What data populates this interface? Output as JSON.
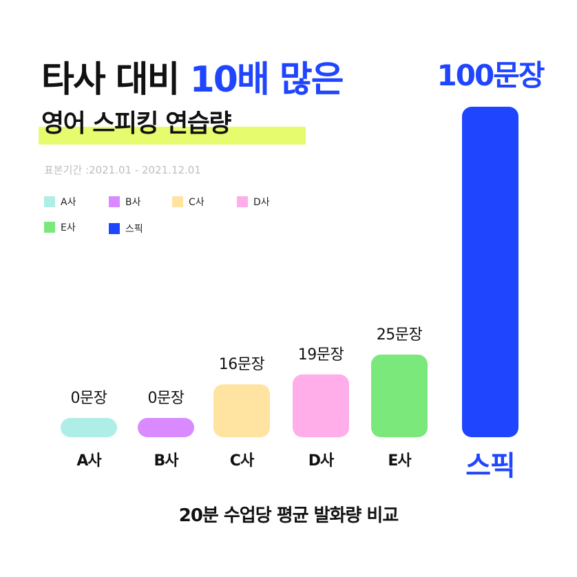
{
  "header": {
    "title_prefix": "타사 대비",
    "title_accent": "10배 많은",
    "title_line2": "영어 스피킹 연습량",
    "period": "표본기간 :2021.01 - 2021.12.01"
  },
  "footer": {
    "caption": "20분 수업당 평균 발화량 비교"
  },
  "colors": {
    "accent": "#1f45ff",
    "highlight": "#e6fb6e"
  },
  "chart_data": {
    "type": "bar",
    "categories": [
      "A사",
      "B사",
      "C사",
      "D사",
      "E사",
      "스픽"
    ],
    "values": [
      0,
      0,
      16,
      19,
      25,
      100
    ],
    "value_labels": [
      "0문장",
      "0문장",
      "16문장",
      "19문장",
      "25문장",
      "100문장"
    ],
    "colors": [
      "#aeeee6",
      "#d98aff",
      "#ffe3a0",
      "#ffaeea",
      "#7be87b",
      "#1f45ff"
    ],
    "legend": {
      "placement": "top-left",
      "entries": [
        "A사",
        "B사",
        "C사",
        "D사",
        "E사",
        "스픽"
      ]
    },
    "grid": false,
    "ylim": [
      0,
      100
    ]
  }
}
